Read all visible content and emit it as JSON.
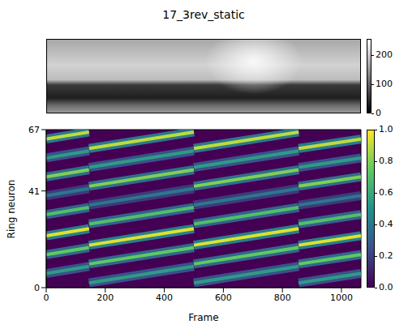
{
  "chart_data": {
    "type": "heatmap",
    "title": "17_3rev_static",
    "x_label": "Frame",
    "y_label": "Ring neuron",
    "xlim": [
      0,
      1066
    ],
    "xticks": [
      0,
      200,
      400,
      600,
      800,
      1000
    ],
    "ylim": [
      0,
      67
    ],
    "yticks": [
      0,
      41,
      67
    ],
    "colorbar": {
      "range": [
        0,
        1
      ],
      "ticks": [
        {
          "value": 0,
          "label": "0.0"
        },
        0.2,
        0.4,
        0.6,
        0.8,
        {
          "value": 1,
          "label": "1.0"
        }
      ]
    },
    "image_colorbar": {
      "range": [
        0,
        255
      ],
      "ticks": [
        0,
        100,
        200
      ]
    },
    "stripes": [
      {
        "x": [
          0,
          145
        ],
        "y": [
          6,
          9
        ],
        "value": 0.55
      },
      {
        "x": [
          0,
          145
        ],
        "y": [
          14,
          17
        ],
        "value": 0.75
      },
      {
        "x": [
          0,
          145
        ],
        "y": [
          22,
          25
        ],
        "value": 0.95
      },
      {
        "x": [
          0,
          145
        ],
        "y": [
          31,
          34
        ],
        "value": 0.7
      },
      {
        "x": [
          0,
          145
        ],
        "y": [
          39,
          42
        ],
        "value": 0.4
      },
      {
        "x": [
          0,
          145
        ],
        "y": [
          47,
          50
        ],
        "value": 0.8
      },
      {
        "x": [
          0,
          145
        ],
        "y": [
          55,
          58
        ],
        "value": 0.55
      },
      {
        "x": [
          0,
          145
        ],
        "y": [
          63,
          66
        ],
        "value": 0.9
      },
      {
        "x": [
          145,
          500
        ],
        "y": [
          2,
          9
        ],
        "value": 0.55
      },
      {
        "x": [
          145,
          500
        ],
        "y": [
          10,
          17
        ],
        "value": 0.75
      },
      {
        "x": [
          145,
          500
        ],
        "y": [
          18,
          25
        ],
        "value": 0.95
      },
      {
        "x": [
          145,
          500
        ],
        "y": [
          27,
          34
        ],
        "value": 0.7
      },
      {
        "x": [
          145,
          500
        ],
        "y": [
          35,
          42
        ],
        "value": 0.4
      },
      {
        "x": [
          145,
          500
        ],
        "y": [
          43,
          50
        ],
        "value": 0.8
      },
      {
        "x": [
          145,
          500
        ],
        "y": [
          51,
          58
        ],
        "value": 0.55
      },
      {
        "x": [
          145,
          500
        ],
        "y": [
          59,
          66
        ],
        "value": 0.9
      },
      {
        "x": [
          500,
          855
        ],
        "y": [
          2,
          9
        ],
        "value": 0.55
      },
      {
        "x": [
          500,
          855
        ],
        "y": [
          10,
          17
        ],
        "value": 0.75
      },
      {
        "x": [
          500,
          855
        ],
        "y": [
          18,
          25
        ],
        "value": 0.95
      },
      {
        "x": [
          500,
          855
        ],
        "y": [
          27,
          34
        ],
        "value": 0.7
      },
      {
        "x": [
          500,
          855
        ],
        "y": [
          35,
          42
        ],
        "value": 0.4
      },
      {
        "x": [
          500,
          855
        ],
        "y": [
          43,
          50
        ],
        "value": 0.8
      },
      {
        "x": [
          500,
          855
        ],
        "y": [
          51,
          58
        ],
        "value": 0.55
      },
      {
        "x": [
          500,
          855
        ],
        "y": [
          59,
          66
        ],
        "value": 0.9
      },
      {
        "x": [
          855,
          1066
        ],
        "y": [
          2,
          6
        ],
        "value": 0.55
      },
      {
        "x": [
          855,
          1066
        ],
        "y": [
          10,
          14
        ],
        "value": 0.75
      },
      {
        "x": [
          855,
          1066
        ],
        "y": [
          18,
          22
        ],
        "value": 0.95
      },
      {
        "x": [
          855,
          1066
        ],
        "y": [
          27,
          31
        ],
        "value": 0.7
      },
      {
        "x": [
          855,
          1066
        ],
        "y": [
          35,
          39
        ],
        "value": 0.4
      },
      {
        "x": [
          855,
          1066
        ],
        "y": [
          43,
          47
        ],
        "value": 0.8
      },
      {
        "x": [
          855,
          1066
        ],
        "y": [
          51,
          55
        ],
        "value": 0.55
      },
      {
        "x": [
          855,
          1066
        ],
        "y": [
          59,
          63
        ],
        "value": 0.9
      }
    ]
  }
}
